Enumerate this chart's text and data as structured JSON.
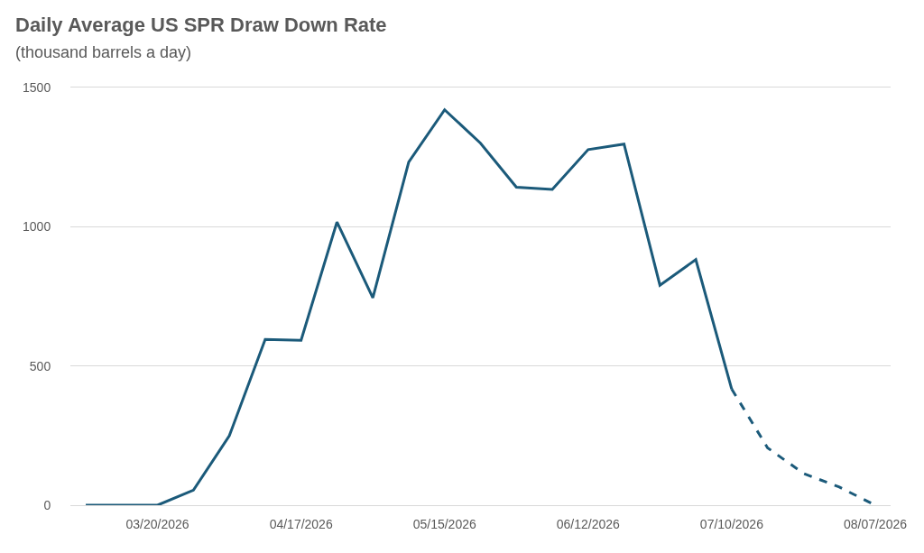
{
  "chart_data": {
    "type": "line",
    "title": "Daily Average US SPR Draw Down Rate",
    "subtitle": "(thousand barrels a day)",
    "series": [
      {
        "color": "#1b5a7a",
        "line_style": "solid",
        "x": [
          "2026-03-06",
          "2026-03-13",
          "2026-03-20",
          "2026-03-27",
          "2026-04-03",
          "2026-04-10",
          "2026-04-17",
          "2026-04-24",
          "2026-05-01",
          "2026-05-08",
          "2026-05-15",
          "2026-05-22",
          "2026-05-29",
          "2026-06-05",
          "2026-06-12",
          "2026-06-19",
          "2026-06-26",
          "2026-07-03",
          "2026-07-10"
        ],
        "values": [
          0,
          0,
          0,
          54,
          249,
          595,
          592,
          1017,
          745,
          1232,
          1420,
          1300,
          1142,
          1134,
          1277,
          1297,
          790,
          882,
          417
        ]
      },
      {
        "color": "#1b5a7a",
        "line_style": "dashed",
        "x": [
          "2026-07-10",
          "2026-07-17",
          "2026-07-24",
          "2026-07-31",
          "2026-08-07"
        ],
        "values": [
          417,
          206,
          114,
          65,
          0
        ]
      }
    ],
    "xlim": [
      "2026-03-03",
      "2026-08-10"
    ],
    "xticks": [
      {
        "value": "2026-03-20",
        "label": "03/20/2026"
      },
      {
        "value": "2026-04-17",
        "label": "04/17/2026"
      },
      {
        "value": "2026-05-15",
        "label": "05/15/2026"
      },
      {
        "value": "2026-06-12",
        "label": "06/12/2026"
      },
      {
        "value": "2026-07-10",
        "label": "07/10/2026"
      },
      {
        "value": "2026-08-07",
        "label": "08/07/2026"
      }
    ],
    "ylim": [
      0,
      1500
    ],
    "yticks": [
      0,
      500,
      1000,
      1500
    ],
    "grid": "y"
  }
}
